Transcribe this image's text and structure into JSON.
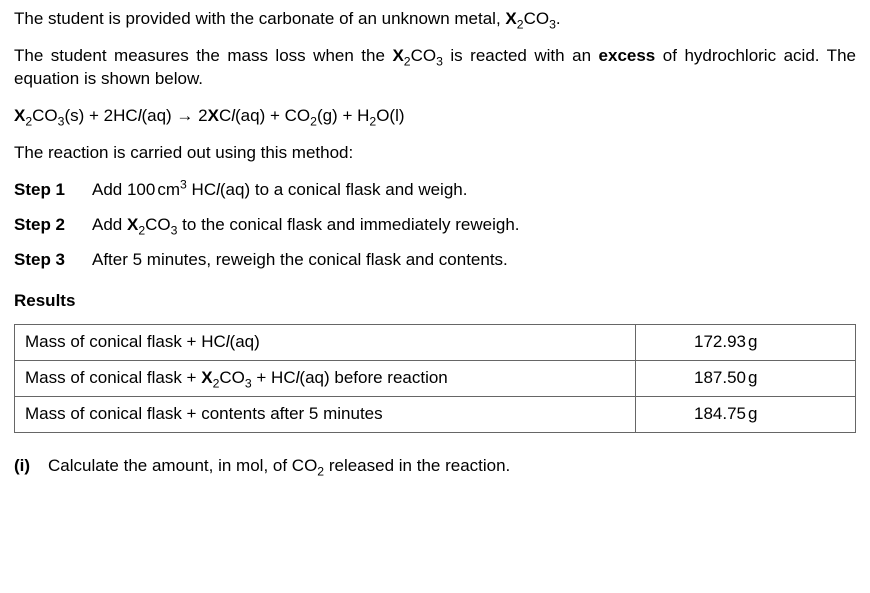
{
  "p1": {
    "t1": "The student is provided with the carbonate of an unknown metal, ",
    "f1": "X",
    "f2": "2",
    "f3": "CO",
    "f4": "3",
    "f5": "."
  },
  "p2": {
    "t1": "The student measures the mass loss when the ",
    "f1": "X",
    "f2": "2",
    "f3": "CO",
    "f4": "3",
    "t2": " is reacted with an ",
    "ex": "excess",
    "t3": " of hydrochloric acid. The equation is shown below."
  },
  "eq": {
    "a1": "X",
    "a2": "2",
    "a3": "CO",
    "a4": "3",
    "a5": "(s)  +  2HC",
    "l1": "l",
    "a6": "(aq)  →  2",
    "b1": "X",
    "b2": "C",
    "l2": "l",
    "b3": "(aq)  +  CO",
    "b4": "2",
    "b5": "(g) + H",
    "b6": "2",
    "b7": "O(l)"
  },
  "p3": "The reaction is carried out using this method:",
  "steps": {
    "s1lab": "Step 1",
    "s1a": "Add 100",
    "s1b": "cm",
    "s1c": "3",
    "s1d": " HC",
    "s1e": "l",
    "s1f": "(aq) to a conical flask and weigh.",
    "s2lab": "Step 2",
    "s2a": "Add ",
    "s2b": "X",
    "s2c": "2",
    "s2d": "CO",
    "s2e": "3",
    "s2f": " to the conical flask and immediately reweigh.",
    "s3lab": "Step 3",
    "s3a": "After 5 minutes, reweigh the conical flask and contents."
  },
  "results_heading": "Results",
  "table": {
    "r1a": "Mass of conical flask  +  HC",
    "r1b": "l",
    "r1c": "(aq)",
    "r1v": "172.93",
    "r1u": "g",
    "r2a": "Mass of conical flask  +  ",
    "r2b": "X",
    "r2c": "2",
    "r2d": "CO",
    "r2e": "3",
    "r2f": "  +  HC",
    "r2g": "l",
    "r2h": "(aq) before reaction",
    "r2v": "187.50",
    "r2u": "g",
    "r3a": "Mass of conical flask  +  contents after 5 minutes",
    "r3v": "184.75",
    "r3u": "g"
  },
  "qi": {
    "num": "(i)",
    "t1": "Calculate the amount, in mol, of CO",
    "s": "2",
    "t2": " released in the reaction."
  }
}
